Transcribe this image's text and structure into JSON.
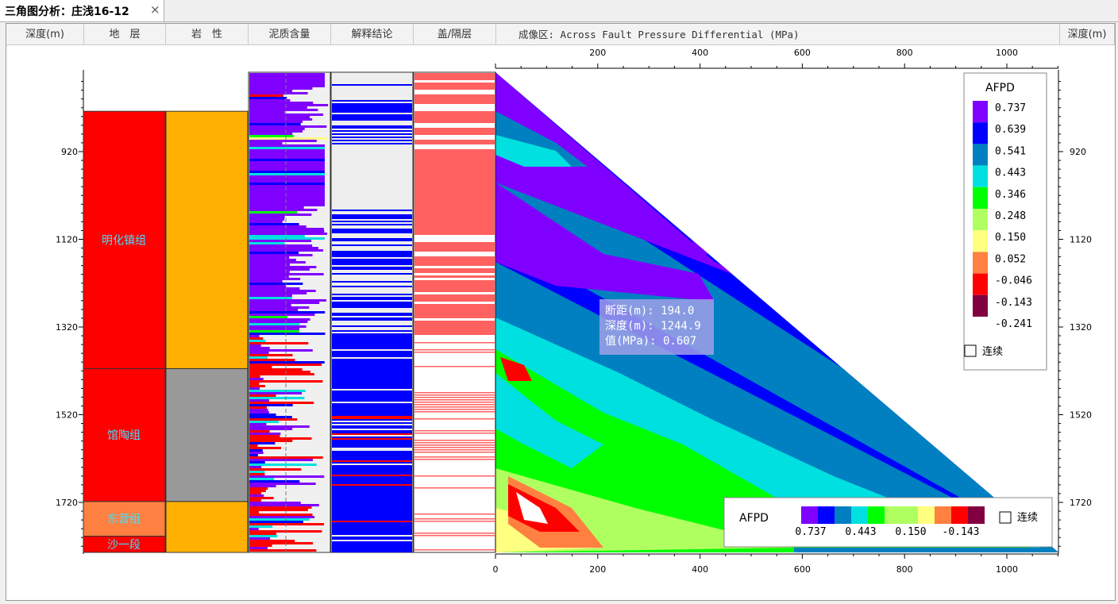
{
  "tab": {
    "title": "三角图分析：庄浅16-12",
    "close": "×"
  },
  "columns": {
    "depth_left": "深度(m)",
    "formation": "地　层",
    "lithology": "岩　性",
    "shale": "泥质含量",
    "interpretation": "解释结论",
    "cap": "盖/隔层",
    "image": "成像区: Across Fault Pressure Differential (MPa)",
    "depth_right": "深度(m)"
  },
  "depth_ticks": [
    "920",
    "1120",
    "1320",
    "1520",
    "1720"
  ],
  "x_ticks_top": [
    "200",
    "400",
    "600",
    "800",
    "1000"
  ],
  "x_ticks_bottom": [
    "0",
    "200",
    "400",
    "600",
    "800",
    "1000"
  ],
  "formations": [
    {
      "name": "明化镇组",
      "top": 828,
      "bottom": 1415,
      "color": "#ff0000"
    },
    {
      "name": "馆陶组",
      "top": 1415,
      "bottom": 1718,
      "color": "#ff0000"
    },
    {
      "name": "东营组",
      "top": 1718,
      "bottom": 1797,
      "color": "#ff8040"
    },
    {
      "name": "沙一段",
      "top": 1797,
      "bottom": 1900,
      "color": "#ff0000"
    }
  ],
  "lithology": [
    {
      "top": 828,
      "bottom": 1415,
      "color": "#ffb000"
    },
    {
      "top": 1415,
      "bottom": 1718,
      "color": "#999999"
    },
    {
      "top": 1718,
      "bottom": 1900,
      "color": "#ffb000"
    }
  ],
  "tooltip": {
    "line1": "断距(m): 194.0",
    "line2": "深度(m): 1244.9",
    "line3": "值(MPa): 0.607"
  },
  "legend": {
    "title": "AFPD",
    "values": [
      "0.737",
      "0.639",
      "0.541",
      "0.443",
      "0.346",
      "0.248",
      "0.150",
      "0.052",
      "-0.046",
      "-0.143",
      "-0.241"
    ],
    "colors": [
      "#8000ff",
      "#0000ff",
      "#0080c0",
      "#00e0e0",
      "#00ff00",
      "#b0ff60",
      "#ffff80",
      "#ff8040",
      "#ff0000",
      "#800040"
    ],
    "continuous_label": "连续"
  },
  "bottom_legend": {
    "title": "AFPD",
    "labels": [
      "0.737",
      "0.443",
      "0.150",
      "-0.143"
    ],
    "continuous_label": "连续"
  }
}
